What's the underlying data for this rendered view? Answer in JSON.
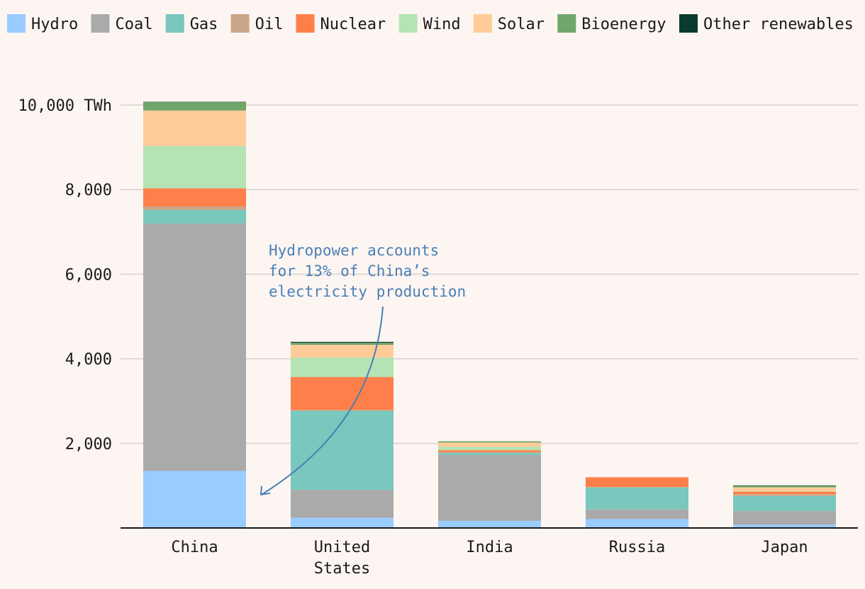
{
  "chart_data": {
    "type": "bar",
    "stacked": true,
    "title": "",
    "xlabel": "",
    "ylabel": "",
    "y_unit": "TWh",
    "ylim": [
      0,
      10000
    ],
    "yticks": [
      {
        "value": 2000,
        "label": "2,000"
      },
      {
        "value": 4000,
        "label": "4,000"
      },
      {
        "value": 6000,
        "label": "6,000"
      },
      {
        "value": 8000,
        "label": "8,000"
      },
      {
        "value": 10000,
        "label": "10,000 TWh"
      }
    ],
    "grid": "horizontal",
    "legend_position": "top-left",
    "categories": [
      {
        "label_lines": [
          "China"
        ]
      },
      {
        "label_lines": [
          "United",
          "States"
        ]
      },
      {
        "label_lines": [
          "India"
        ]
      },
      {
        "label_lines": [
          "Russia"
        ]
      },
      {
        "label_lines": [
          "Japan"
        ]
      }
    ],
    "series": [
      {
        "name": "Hydro",
        "color": "#99ccff",
        "values": [
          1350,
          240,
          170,
          210,
          80
        ]
      },
      {
        "name": "Coal",
        "color": "#aaaaaa",
        "values": [
          5850,
          660,
          1560,
          230,
          320
        ]
      },
      {
        "name": "Gas",
        "color": "#79c7bd",
        "values": [
          320,
          1870,
          50,
          520,
          360
        ]
      },
      {
        "name": "Oil",
        "color": "#c9a687",
        "values": [
          80,
          20,
          10,
          10,
          40
        ]
      },
      {
        "name": "Nuclear",
        "color": "#ff7f4a",
        "values": [
          430,
          780,
          50,
          230,
          60
        ]
      },
      {
        "name": "Wind",
        "color": "#b4e3b4",
        "values": [
          1000,
          460,
          80,
          0,
          10
        ]
      },
      {
        "name": "Solar",
        "color": "#ffcc99",
        "values": [
          840,
          300,
          100,
          0,
          90
        ]
      },
      {
        "name": "Bioenergy",
        "color": "#6fa66a",
        "values": [
          200,
          50,
          30,
          0,
          40
        ]
      },
      {
        "name": "Other renewables",
        "color": "#0b3a2e",
        "values": [
          5,
          20,
          0,
          0,
          5
        ]
      }
    ],
    "annotation": {
      "lines": [
        "Hydropower accounts",
        "for 13% of China’s",
        "electricity production"
      ],
      "target_category": "China",
      "target_series": "Hydro"
    }
  }
}
